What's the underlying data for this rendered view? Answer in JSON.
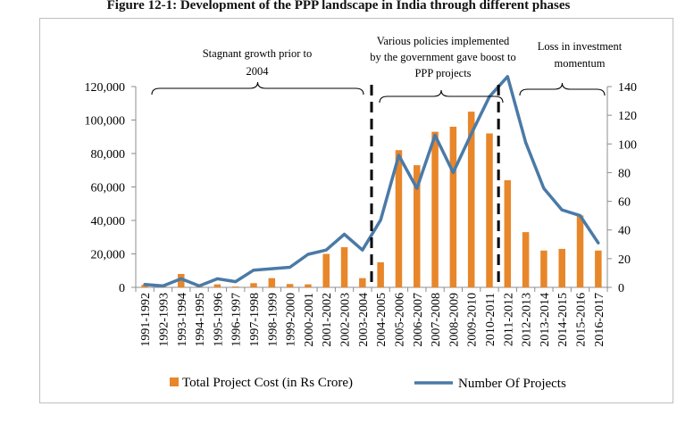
{
  "figure_title": "Figure 12-1: Development of the PPP landscape in India through different phases",
  "colors": {
    "bar": "#E8862A",
    "line": "#4A7AA7",
    "axis": "#8c8c8c",
    "divider": "#000000"
  },
  "annotations": {
    "phase1": [
      "Stagnant growth prior to",
      "2004"
    ],
    "phase2": [
      "Various policies implemented",
      "by the government gave boost to",
      "PPP projects"
    ],
    "phase3": [
      "Loss in investment",
      "momentum"
    ]
  },
  "chart_data": {
    "type": "bar",
    "categories": [
      "1991-1992",
      "1992-1993",
      "1993-1994",
      "1994-1995",
      "1995-1996",
      "1996-1997",
      "1997-1998",
      "1998-1999",
      "1999-2000",
      "2000-2001",
      "2001-2002",
      "2002-2003",
      "2003-2004",
      "2004-2005",
      "2005-2006",
      "2006-2007",
      "2007-2008",
      "2008-2009",
      "2009-2010",
      "2010-2011",
      "2011-2012",
      "2012-2013",
      "2013-2014",
      "2014-2015",
      "2015-2016",
      "2016-2017"
    ],
    "series": [
      {
        "name": "Total Project Cost (in Rs Crore)",
        "type": "bar",
        "axis": "left",
        "values": [
          1500,
          500,
          8000,
          500,
          1800,
          500,
          2500,
          5500,
          2000,
          1800,
          20000,
          24000,
          5500,
          15000,
          82000,
          73000,
          93000,
          96000,
          105000,
          92000,
          64000,
          33000,
          22000,
          23000,
          43000,
          22000
        ]
      },
      {
        "name": "Number Of Projects",
        "type": "line",
        "axis": "right",
        "values": [
          2,
          1,
          6,
          1,
          6,
          4,
          12,
          13,
          14,
          23,
          26,
          37,
          26,
          47,
          92,
          69,
          106,
          80,
          107,
          133,
          147,
          101,
          69,
          54,
          50,
          31
        ]
      }
    ],
    "y_left": {
      "min": 0,
      "max": 120000,
      "ticks": [
        "0",
        "20,000",
        "40,000",
        "60,000",
        "80,000",
        "100,000",
        "120,000"
      ]
    },
    "y_right": {
      "min": 0,
      "max": 140,
      "ticks": [
        "0",
        "20",
        "40",
        "60",
        "80",
        "100",
        "120",
        "140"
      ]
    },
    "phase_dividers_after": [
      "2003-2004",
      "2010-2011"
    ],
    "grid": false,
    "legend_position": "bottom"
  }
}
